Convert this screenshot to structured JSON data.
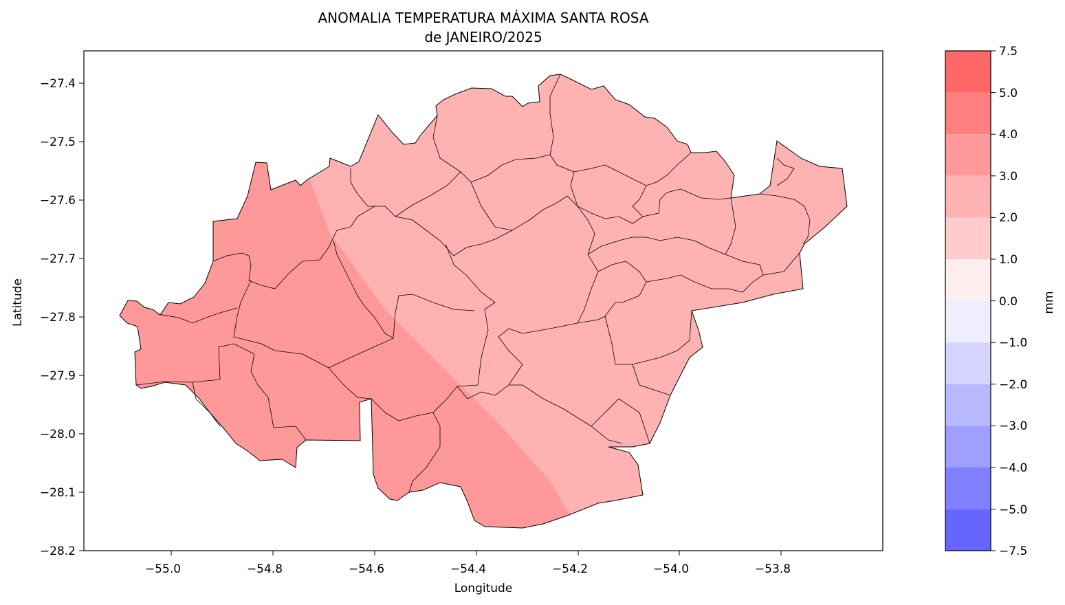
{
  "title_line1": "ANOMALIA TEMPERATURA MÁXIMA SANTA ROSA",
  "title_line2": "de JANEIRO/2025",
  "xlabel": "Longitude",
  "ylabel": "Latitude",
  "x_ticks": [
    "−55.0",
    "−54.8",
    "−54.6",
    "−54.4",
    "−54.2",
    "−54.0",
    "−53.8"
  ],
  "y_ticks": [
    "−27.4",
    "−27.5",
    "−27.6",
    "−27.7",
    "−27.8",
    "−27.9",
    "−28.0",
    "−28.1",
    "−28.2"
  ],
  "colorbar": {
    "unit": "mm",
    "ticks": [
      "7.5",
      "5.0",
      "4.0",
      "3.0",
      "2.0",
      "1.0",
      "0.0",
      "−1.0",
      "−2.0",
      "−3.0",
      "−4.0",
      "−5.0",
      "−7.5"
    ],
    "bands_top_to_bottom": [
      "#ff6666",
      "#ff7f7f",
      "#ff9999",
      "#ffb2b2",
      "#ffcccc",
      "#ffeeee",
      "#eeeeff",
      "#d4d4ff",
      "#b8b8ff",
      "#9f9fff",
      "#8080ff",
      "#6666ff"
    ]
  },
  "chart_data": {
    "type": "heatmap",
    "title": "ANOMALIA TEMPERATURA MÁXIMA SANTA ROSA de JANEIRO/2025",
    "xlabel": "Longitude",
    "ylabel": "Latitude",
    "xlim": [
      -55.15,
      -53.58
    ],
    "ylim": [
      -28.2,
      -27.34
    ],
    "levels": [
      -7.5,
      -5.0,
      -4.0,
      -3.0,
      -2.0,
      -1.0,
      0.0,
      1.0,
      2.0,
      3.0,
      4.0,
      5.0,
      7.5
    ],
    "regions": [
      {
        "area": "west / southwest",
        "value_range": [
          3.0,
          4.0
        ],
        "color": "#ff9999"
      },
      {
        "area": "east / northeast",
        "value_range": [
          2.0,
          3.0
        ],
        "color": "#ffb2b2"
      }
    ]
  }
}
